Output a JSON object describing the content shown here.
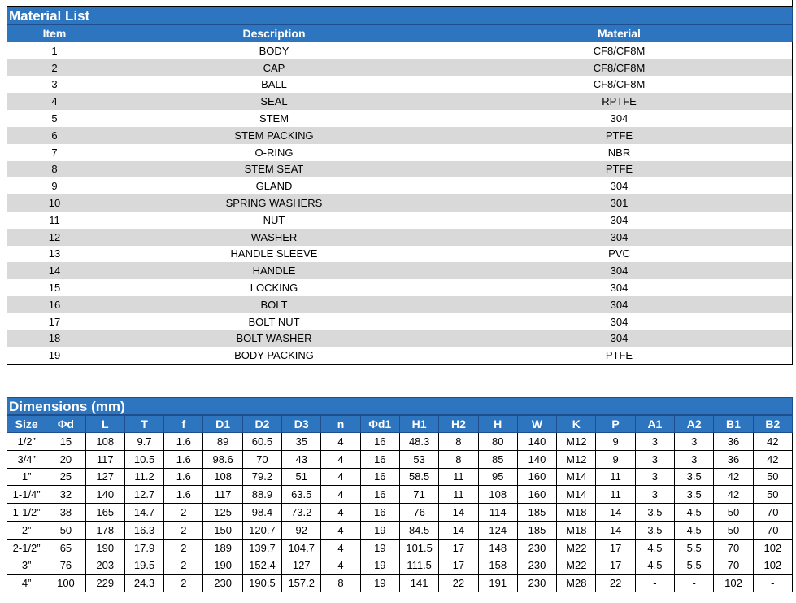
{
  "material_list": {
    "title": "Material List",
    "headers": [
      "Item",
      "Description",
      "Material"
    ],
    "rows": [
      [
        "1",
        "BODY",
        "CF8/CF8M"
      ],
      [
        "2",
        "CAP",
        "CF8/CF8M"
      ],
      [
        "3",
        "BALL",
        "CF8/CF8M"
      ],
      [
        "4",
        "SEAL",
        "RPTFE"
      ],
      [
        "5",
        "STEM",
        "304"
      ],
      [
        "6",
        "STEM PACKING",
        "PTFE"
      ],
      [
        "7",
        "O-RING",
        "NBR"
      ],
      [
        "8",
        "STEM SEAT",
        "PTFE"
      ],
      [
        "9",
        "GLAND",
        "304"
      ],
      [
        "10",
        "SPRING WASHERS",
        "301"
      ],
      [
        "11",
        "NUT",
        "304"
      ],
      [
        "12",
        "WASHER",
        "304"
      ],
      [
        "13",
        "HANDLE SLEEVE",
        "PVC"
      ],
      [
        "14",
        "HANDLE",
        "304"
      ],
      [
        "15",
        "LOCKING",
        "304"
      ],
      [
        "16",
        "BOLT",
        "304"
      ],
      [
        "17",
        "BOLT NUT",
        "304"
      ],
      [
        "18",
        "BOLT WASHER",
        "304"
      ],
      [
        "19",
        "BODY PACKING",
        "PTFE"
      ]
    ]
  },
  "dimensions": {
    "title": "Dimensions (mm)",
    "headers": [
      "Size",
      "Φd",
      "L",
      "T",
      "f",
      "D1",
      "D2",
      "D3",
      "n",
      "Φd1",
      "H1",
      "H2",
      "H",
      "W",
      "K",
      "P",
      "A1",
      "A2",
      "B1",
      "B2"
    ],
    "rows": [
      [
        "1/2”",
        "15",
        "108",
        "9.7",
        "1.6",
        "89",
        "60.5",
        "35",
        "4",
        "16",
        "48.3",
        "8",
        "80",
        "140",
        "M12",
        "9",
        "3",
        "3",
        "36",
        "42"
      ],
      [
        "3/4”",
        "20",
        "117",
        "10.5",
        "1.6",
        "98.6",
        "70",
        "43",
        "4",
        "16",
        "53",
        "8",
        "85",
        "140",
        "M12",
        "9",
        "3",
        "3",
        "36",
        "42"
      ],
      [
        "1”",
        "25",
        "127",
        "11.2",
        "1.6",
        "108",
        "79.2",
        "51",
        "4",
        "16",
        "58.5",
        "11",
        "95",
        "160",
        "M14",
        "11",
        "3",
        "3.5",
        "42",
        "50"
      ],
      [
        "1-1/4”",
        "32",
        "140",
        "12.7",
        "1.6",
        "117",
        "88.9",
        "63.5",
        "4",
        "16",
        "71",
        "11",
        "108",
        "160",
        "M14",
        "11",
        "3",
        "3.5",
        "42",
        "50"
      ],
      [
        "1-1/2”",
        "38",
        "165",
        "14.7",
        "2",
        "125",
        "98.4",
        "73.2",
        "4",
        "16",
        "76",
        "14",
        "114",
        "185",
        "M18",
        "14",
        "3.5",
        "4.5",
        "50",
        "70"
      ],
      [
        "2”",
        "50",
        "178",
        "16.3",
        "2",
        "150",
        "120.7",
        "92",
        "4",
        "19",
        "84.5",
        "14",
        "124",
        "185",
        "M18",
        "14",
        "3.5",
        "4.5",
        "50",
        "70"
      ],
      [
        "2-1/2”",
        "65",
        "190",
        "17.9",
        "2",
        "189",
        "139.7",
        "104.7",
        "4",
        "19",
        "101.5",
        "17",
        "148",
        "230",
        "M22",
        "17",
        "4.5",
        "5.5",
        "70",
        "102"
      ],
      [
        "3”",
        "76",
        "203",
        "19.5",
        "2",
        "190",
        "152.4",
        "127",
        "4",
        "19",
        "111.5",
        "17",
        "158",
        "230",
        "M22",
        "17",
        "4.5",
        "5.5",
        "70",
        "102"
      ],
      [
        "4”",
        "100",
        "229",
        "24.3",
        "2",
        "230",
        "190.5",
        "157.2",
        "8",
        "19",
        "141",
        "22",
        "191",
        "230",
        "M28",
        "22",
        "-",
        "-",
        "102",
        "-"
      ]
    ]
  }
}
